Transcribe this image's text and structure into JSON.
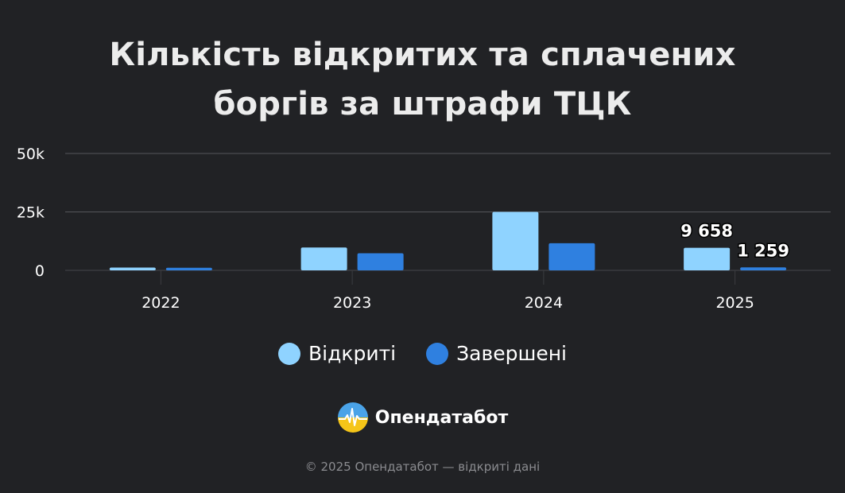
{
  "title_lines": [
    "Кількість відкритих та сплачених",
    "боргів за штрафи ТЦК"
  ],
  "chart_data": {
    "type": "bar",
    "categories": [
      "2022",
      "2023",
      "2024",
      "2025"
    ],
    "series": [
      {
        "name": "Відкриті",
        "color": "#8fd3ff",
        "values": [
          1200,
          9800,
          25000,
          9658
        ]
      },
      {
        "name": "Завершені",
        "color": "#2f80e0",
        "values": [
          1100,
          7300,
          11600,
          1259
        ]
      }
    ],
    "ylim": [
      0,
      50000
    ],
    "yticks": [
      {
        "value": 0,
        "label": "0"
      },
      {
        "value": 25000,
        "label": "25k"
      },
      {
        "value": 50000,
        "label": "50k"
      }
    ],
    "data_labels": [
      {
        "series": 0,
        "index": 3,
        "text": "9 658"
      },
      {
        "series": 1,
        "index": 3,
        "text": "1 259"
      }
    ],
    "grid": true,
    "legend_position": "bottom"
  },
  "legend": [
    {
      "label": "Відкриті",
      "color": "#8fd3ff"
    },
    {
      "label": "Завершені",
      "color": "#2f80e0"
    }
  ],
  "brand": {
    "name": "Опендатабот",
    "logo_icon": "opendatabot-logo-icon"
  },
  "footer": "© 2025 Опендатабот — відкриті дані"
}
